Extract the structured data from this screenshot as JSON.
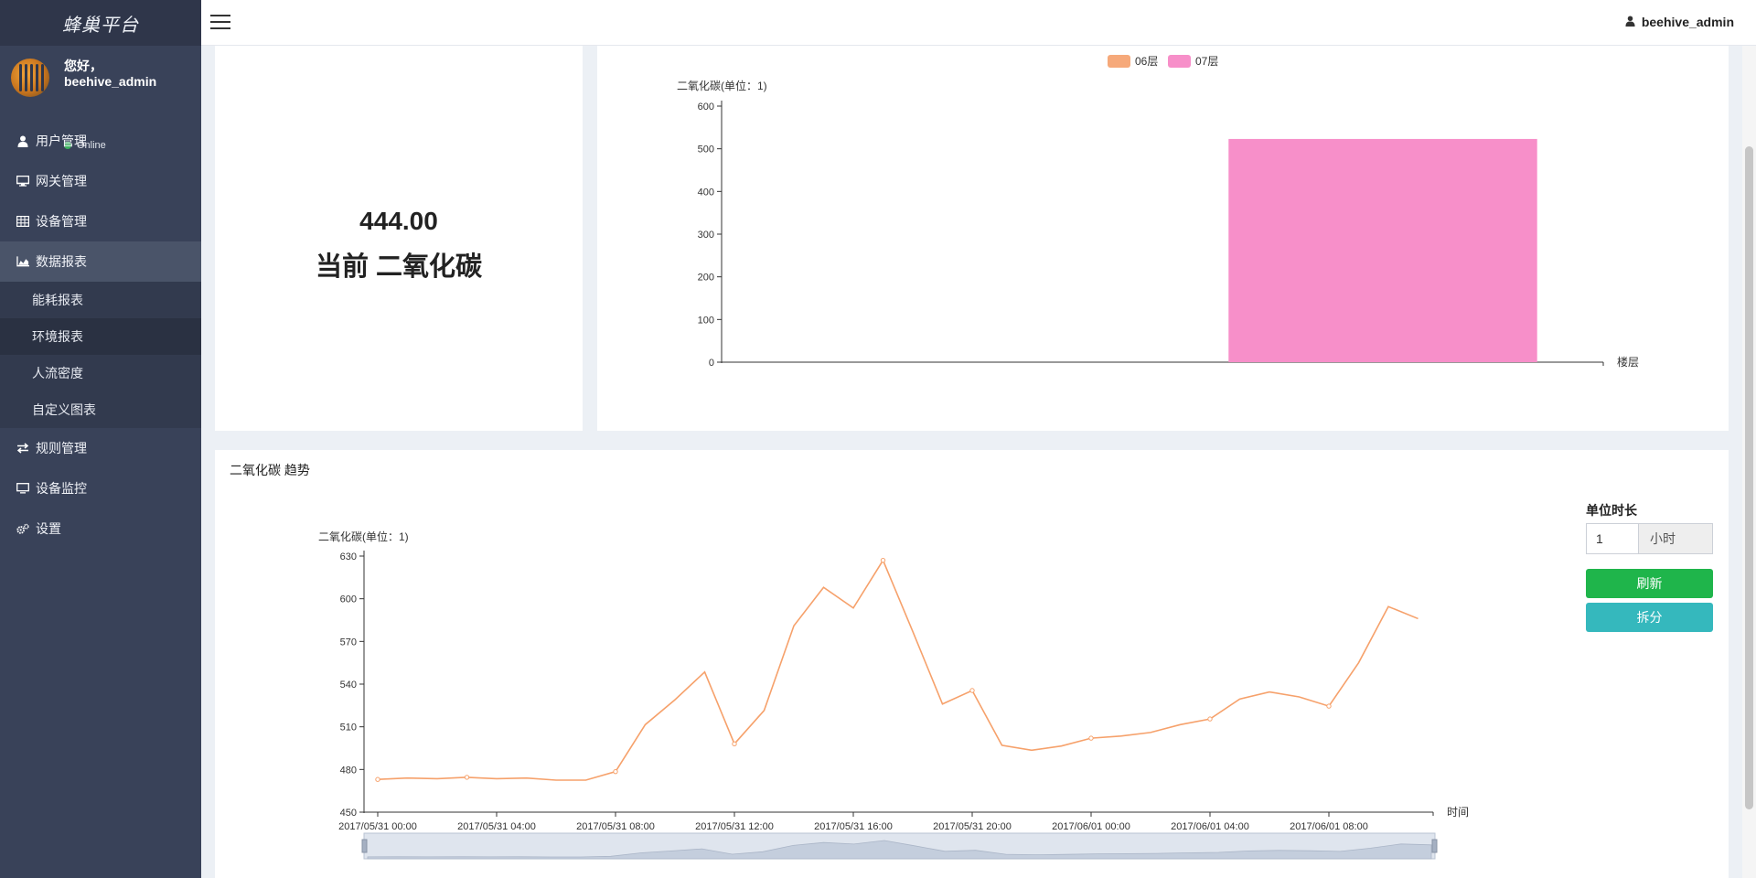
{
  "brand": "蜂巢平台",
  "user": {
    "greeting": "您好，",
    "name": "beehive_admin",
    "status": "Online"
  },
  "menu": {
    "items": [
      {
        "label": "用户管理",
        "icon": "user-icon"
      },
      {
        "label": "网关管理",
        "icon": "desktop-icon"
      },
      {
        "label": "设备管理",
        "icon": "table-icon"
      },
      {
        "label": "数据报表",
        "icon": "area-chart-icon"
      },
      {
        "label": "规则管理",
        "icon": "exchange-icon"
      },
      {
        "label": "设备监控",
        "icon": "monitor-icon"
      },
      {
        "label": "设置",
        "icon": "gears-icon"
      }
    ],
    "sub_items": [
      {
        "label": "能耗报表"
      },
      {
        "label": "环境报表"
      },
      {
        "label": "人流密度"
      },
      {
        "label": "自定义图表"
      }
    ]
  },
  "topbar": {
    "username": "beehive_admin"
  },
  "current": {
    "value": "444.00",
    "label": "当前 二氧化碳"
  },
  "controls": {
    "unit_label": "单位时长",
    "unit_value": "1",
    "unit_suffix": "小时",
    "refresh_label": "刷新",
    "split_label": "拆分"
  },
  "trend_title": "二氧化碳 趋势",
  "chart_data": [
    {
      "type": "bar",
      "categories": [
        "06层",
        "07层"
      ],
      "series": [
        {
          "name": "06层",
          "values": [
            0,
            null
          ]
        },
        {
          "name": "07层",
          "values": [
            null,
            523
          ]
        }
      ],
      "colors": [
        "#f6a97a",
        "#f78fc9"
      ],
      "ylabel": "二氧化碳(单位：1)",
      "xlabel": "楼层",
      "ylim": [
        0,
        600
      ],
      "yticks": [
        0,
        100,
        200,
        300,
        400,
        500,
        600
      ],
      "legend": "top-center",
      "grid": false
    },
    {
      "type": "line",
      "ylabel": "二氧化碳(单位：1)",
      "xlabel": "时间",
      "ylim": [
        450,
        630
      ],
      "yticks": [
        450,
        480,
        510,
        540,
        570,
        600,
        630
      ],
      "xticks": [
        "2017/05/31 00:00",
        "2017/05/31 04:00",
        "2017/05/31 08:00",
        "2017/05/31 12:00",
        "2017/05/31 16:00",
        "2017/05/31 20:00",
        "2017/06/01 00:00",
        "2017/06/01 04:00",
        "2017/06/01 08:00"
      ],
      "x_start": "2017/05/31 00:00",
      "x_step_hours": 1,
      "values": [
        473,
        474,
        473.5,
        474.5,
        473.5,
        474,
        472.5,
        472.5,
        478.5,
        511.5,
        529,
        548.5,
        498,
        521.5,
        581,
        608,
        593.5,
        627,
        577,
        526,
        535.5,
        497,
        493.5,
        496.5,
        502,
        503.5,
        506,
        511.5,
        515.5,
        529.5,
        534.5,
        531,
        524.5,
        555,
        594.5,
        586
      ],
      "color": "#f6a16b",
      "grid": false,
      "data_zoom": true
    }
  ]
}
